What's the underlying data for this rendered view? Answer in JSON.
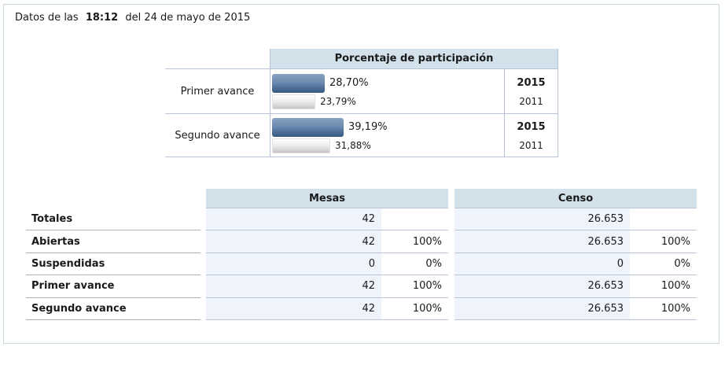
{
  "header": {
    "prefix": "Datos de las",
    "time": "18:12",
    "suffix": "del 24 de mayo de 2015"
  },
  "participation": {
    "title": "Porcentaje de participación",
    "rows": [
      {
        "label": "Primer avance",
        "current_pct": "28,70%",
        "previous_pct": "23,79%",
        "current_value": 28.7,
        "previous_value": 23.79,
        "year_current": "2015",
        "year_previous": "2011"
      },
      {
        "label": "Segundo avance",
        "current_pct": "39,19%",
        "previous_pct": "31,88%",
        "current_value": 39.19,
        "previous_value": 31.88,
        "year_current": "2015",
        "year_previous": "2011"
      }
    ]
  },
  "summary": {
    "row_labels": [
      "Totales",
      "Abiertas",
      "Suspendidas",
      "Primer avance",
      "Segundo avance"
    ],
    "tables": [
      {
        "title": "Mesas",
        "rows": [
          {
            "value": "42",
            "pct": ""
          },
          {
            "value": "42",
            "pct": "100%"
          },
          {
            "value": "0",
            "pct": "0%"
          },
          {
            "value": "42",
            "pct": "100%"
          },
          {
            "value": "42",
            "pct": "100%"
          }
        ]
      },
      {
        "title": "Censo",
        "rows": [
          {
            "value": "26.653",
            "pct": ""
          },
          {
            "value": "26.653",
            "pct": "100%"
          },
          {
            "value": "0",
            "pct": "0%"
          },
          {
            "value": "26.653",
            "pct": "100%"
          },
          {
            "value": "26.653",
            "pct": "100%"
          }
        ]
      }
    ]
  },
  "colors": {
    "header-bg": "#d2e1ea",
    "cell-bg": "#eff3fc",
    "cell-border": "#b9c4d6",
    "label-border": "#a9b2bc",
    "container-border": "#c6d8de",
    "bar-blue-top": "#8aa2c0",
    "bar-blue-mid": "#6d8bb0",
    "bar-blue-bottom": "#38597f",
    "bar-gray-top": "#ffffff",
    "bar-gray-bottom": "#c3c3c3",
    "text": "#1a1a1a"
  },
  "chart_data": {
    "type": "bar",
    "orientation": "horizontal",
    "title": "Porcentaje de participación",
    "categories": [
      "Primer avance",
      "Segundo avance"
    ],
    "series": [
      {
        "name": "2015",
        "values": [
          28.7,
          39.19
        ]
      },
      {
        "name": "2011",
        "values": [
          23.79,
          31.88
        ]
      }
    ],
    "unit": "%",
    "xlim": [
      0,
      100
    ],
    "legend_position": "right-column-years"
  }
}
